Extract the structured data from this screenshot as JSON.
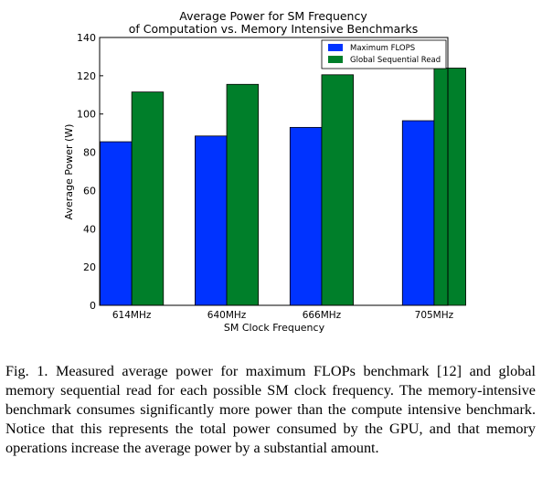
{
  "chart_data": {
    "type": "bar",
    "title": [
      "Average Power for SM Frequency",
      "of Computation vs. Memory Intensive Benchmarks"
    ],
    "xlabel": "SM Clock Frequency",
    "ylabel": "Average Power (W)",
    "categories": [
      "614MHz",
      "640MHz",
      "666MHz",
      "705MHz"
    ],
    "series": [
      {
        "name": "Maximum FLOPS",
        "color": "#0033ff",
        "values": [
          85.5,
          88.5,
          93,
          96.5
        ]
      },
      {
        "name": "Global Sequential Read",
        "color": "#007f2a",
        "values": [
          111.5,
          115.5,
          120.5,
          124
        ]
      }
    ],
    "ylim": [
      0,
      140
    ],
    "yticks": [
      0,
      20,
      40,
      60,
      80,
      100,
      120,
      140
    ],
    "grid": false,
    "legend": "top-right"
  },
  "caption": "Fig. 1.  Measured average power for maximum FLOPs benchmark [12] and global memory sequential read for each possible SM clock frequency. The memory-intensive benchmark consumes significantly more power than the compute intensive benchmark. Notice that this represents the total power consumed by the GPU, and that memory operations increase the average power by a substantial amount."
}
